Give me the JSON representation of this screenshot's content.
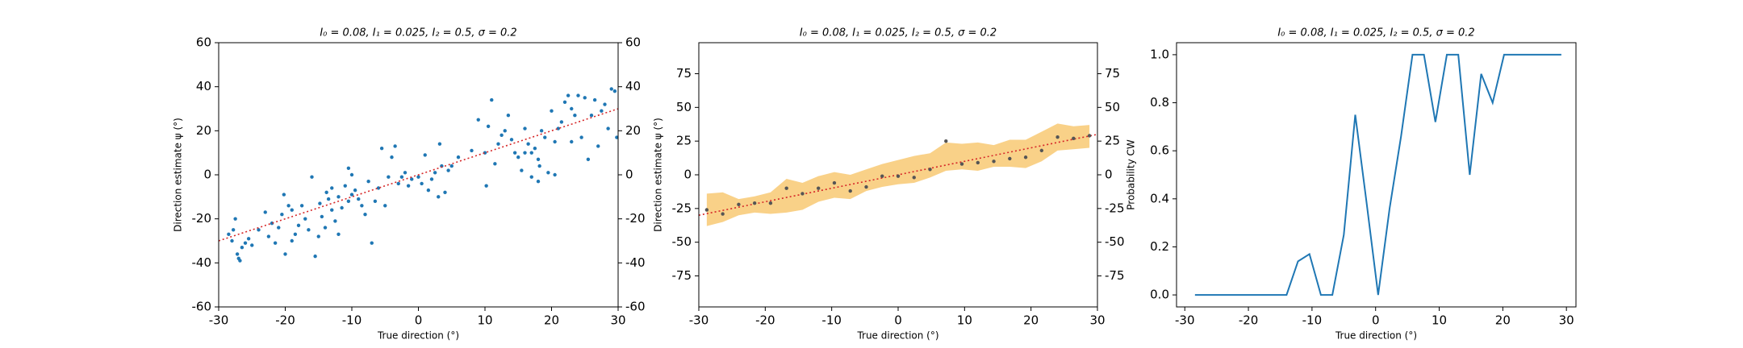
{
  "chart_data": [
    {
      "type": "scatter",
      "title": "I₀ = 0.08, I₁ = 0.025, I₂ = 0.5, σ = 0.2",
      "xlabel": "True direction (°)",
      "ylabel": "Direction estimate ψ (°)",
      "xlim": [
        -30,
        30
      ],
      "xticks": [
        -30,
        -20,
        -10,
        0,
        10,
        20,
        30
      ],
      "ylim": [
        -60,
        60
      ],
      "yticks": [
        -60,
        -40,
        -20,
        0,
        20,
        40,
        60
      ],
      "y2lim": [
        -60,
        60
      ],
      "y2ticks": [
        -60,
        -40,
        -20,
        0,
        20,
        40,
        60
      ],
      "series": [
        {
          "type": "scatter",
          "color": "#1f77b4",
          "x": [
            -28.5,
            -28,
            -27.5,
            -27.2,
            -27,
            -26.8,
            -26.5,
            -26,
            -25.5,
            -27.8,
            -25,
            -24,
            -23,
            -22.5,
            -22,
            -21.5,
            -21,
            -20.5,
            -20.2,
            -20,
            -19.5,
            -19,
            -19,
            -18.5,
            -18,
            -17.5,
            -17,
            -16.5,
            -16,
            -15.5,
            -15,
            -14.8,
            -14.5,
            -14,
            -13.8,
            -13.5,
            -13,
            -13,
            -12.5,
            -12,
            -12,
            -11.5,
            -11,
            -10.5,
            -10.5,
            -10,
            -10,
            -9.5,
            -9,
            -8.5,
            -8,
            -7.5,
            -7,
            -6.5,
            -6,
            -5.5,
            -5,
            -4.5,
            -4,
            -3.5,
            -3,
            -2.5,
            -2,
            -1.5,
            -1,
            0,
            0.5,
            1,
            1.5,
            2,
            2.5,
            3,
            3.2,
            3.5,
            4,
            4.5,
            5,
            6,
            8,
            9,
            10,
            10.2,
            10.5,
            11,
            11.5,
            12,
            12.5,
            13,
            13.5,
            14,
            15,
            15.5,
            16,
            16.5,
            17,
            17,
            17.5,
            18,
            18.2,
            18.5,
            19,
            19.5,
            20,
            20.5,
            21,
            21.5,
            22,
            22.5,
            23,
            23.5,
            24,
            24.5,
            25,
            25.5,
            26,
            26.5,
            27,
            27.5,
            28,
            28.5,
            29,
            29.5,
            29.8,
            16,
            18,
            14.5,
            23,
            20.5
          ],
          "values": [
            -27,
            -30,
            -20,
            -36,
            -38,
            -39,
            -33,
            -31,
            -29,
            -25,
            -32,
            -25,
            -17,
            -28,
            -22,
            -31,
            -24,
            -18,
            -9,
            -36,
            -14,
            -16,
            -30,
            -27,
            -23,
            -14,
            -20,
            -25,
            -1,
            -37,
            -28,
            -13,
            -19,
            -24,
            -8,
            -11,
            -6,
            -16,
            -21,
            -27,
            -10,
            -15,
            -5,
            3,
            -12,
            0,
            -9,
            -7,
            -11,
            -14,
            -18,
            -3,
            -31,
            -12,
            -6,
            12,
            -14,
            -1,
            8,
            13,
            -4,
            -1,
            1,
            -5,
            -2,
            -1,
            -4,
            9,
            -7,
            -2,
            1,
            -10,
            14,
            4,
            -8,
            2,
            4,
            8,
            11,
            25,
            10,
            -5,
            22,
            34,
            5,
            14,
            18,
            20,
            27,
            16,
            8,
            2,
            21,
            14,
            -1,
            10,
            12,
            7,
            4,
            20,
            17,
            1,
            29,
            15,
            21,
            24,
            33,
            36,
            30,
            27,
            36,
            17,
            35,
            7,
            27,
            34,
            13,
            29,
            32,
            21,
            39,
            38,
            17,
            10,
            -3,
            10,
            15,
            0
          ]
        },
        {
          "type": "line",
          "dash": "dotted",
          "color": "#d62728",
          "x": [
            -30,
            30
          ],
          "values": [
            -30,
            30
          ]
        }
      ]
    },
    {
      "type": "scatter",
      "title": "I₀ = 0.08, I₁ = 0.025, I₂ = 0.5, σ = 0.2",
      "xlabel": "True direction (°)",
      "ylabel": "Direction estimate ψ (°)",
      "xlim": [
        -30,
        30
      ],
      "xticks": [
        -30,
        -20,
        -10,
        0,
        10,
        20,
        30
      ],
      "ylim": [
        -98,
        98
      ],
      "yticks": [
        -75,
        -50,
        -25,
        0,
        25,
        50,
        75
      ],
      "y2lim": [
        -98,
        98
      ],
      "y2ticks": [
        -75,
        -50,
        -25,
        0,
        25,
        50,
        75
      ],
      "series": [
        {
          "type": "band",
          "color": "#f8c66a",
          "x": [
            -28.8,
            -26.4,
            -24,
            -21.6,
            -19.2,
            -16.8,
            -14.4,
            -12,
            -9.6,
            -7.2,
            -4.8,
            -2.4,
            0,
            2.4,
            4.8,
            7.2,
            9.6,
            12,
            14.4,
            16.8,
            19.2,
            21.6,
            24,
            26.4,
            28.8
          ],
          "lower": [
            -38,
            -35,
            -30,
            -28,
            -29,
            -28,
            -26,
            -20,
            -17,
            -18,
            -12,
            -9,
            -7,
            -6,
            -2,
            3,
            4,
            3,
            6,
            6,
            5,
            10,
            18,
            19,
            20
          ],
          "upper": [
            -14,
            -13,
            -18,
            -16,
            -13,
            -3,
            -6,
            -1,
            2,
            0,
            4,
            8,
            11,
            14,
            16,
            24,
            23,
            24,
            22,
            26,
            26,
            32,
            38,
            36,
            37
          ]
        },
        {
          "type": "line",
          "dash": "dotted",
          "color": "#d62728",
          "x": [
            -30,
            30
          ],
          "values": [
            -30,
            30
          ]
        },
        {
          "type": "scatter",
          "color": "#555555",
          "x": [
            -28.8,
            -26.4,
            -24,
            -21.6,
            -19.2,
            -16.8,
            -14.4,
            -12,
            -9.6,
            -7.2,
            -4.8,
            -2.4,
            0,
            2.4,
            4.8,
            7.2,
            9.6,
            12,
            14.4,
            16.8,
            19.2,
            21.6,
            24,
            26.4,
            28.8
          ],
          "values": [
            -26,
            -29,
            -22,
            -21,
            -21,
            -10,
            -14,
            -10,
            -6,
            -12,
            -9,
            -1,
            -1,
            -2,
            4,
            25,
            8,
            9,
            10,
            12,
            13,
            18,
            28,
            27,
            29
          ]
        }
      ]
    },
    {
      "type": "line",
      "title": "I₀ = 0.08, I₁ = 0.025, I₂ = 0.5, σ = 0.2",
      "xlabel": "True direction (°)",
      "ylabel": "Probability CW",
      "xlim": [
        -31.3,
        31.5
      ],
      "xticks": [
        -30,
        -20,
        -10,
        0,
        10,
        20,
        30
      ],
      "ylim": [
        -0.05,
        1.05
      ],
      "yticks": [
        {
          "value": 0,
          "label": "0.0"
        },
        {
          "value": 0.2,
          "label": "0.2"
        },
        {
          "value": 0.4,
          "label": "0.4"
        },
        {
          "value": 0.6,
          "label": "0.6"
        },
        {
          "value": 0.8,
          "label": "0.8"
        },
        {
          "value": 1,
          "label": "1.0"
        }
      ],
      "series": [
        {
          "type": "line",
          "color": "#1f77b4",
          "x": [
            -28.4,
            -26.6,
            -24.8,
            -23,
            -21.2,
            -19.4,
            -17.6,
            -15.8,
            -14,
            -12.2,
            -10.4,
            -8.6,
            -6.8,
            -5,
            -3.2,
            -1.4,
            0.4,
            2.2,
            4,
            5.8,
            7.6,
            9.4,
            11.2,
            13,
            14.8,
            16.6,
            18.4,
            20.2,
            22,
            23.8,
            25.6,
            27.4,
            29.2
          ],
          "values": [
            0,
            0,
            0,
            0,
            0,
            0,
            0,
            0,
            0,
            0.14,
            0.17,
            0,
            0,
            0.25,
            0.75,
            0.38,
            0,
            0.36,
            0.66,
            1,
            1,
            0.72,
            1,
            1,
            0.5,
            0.92,
            0.8,
            1,
            1,
            1,
            1,
            1,
            1
          ]
        }
      ]
    }
  ]
}
